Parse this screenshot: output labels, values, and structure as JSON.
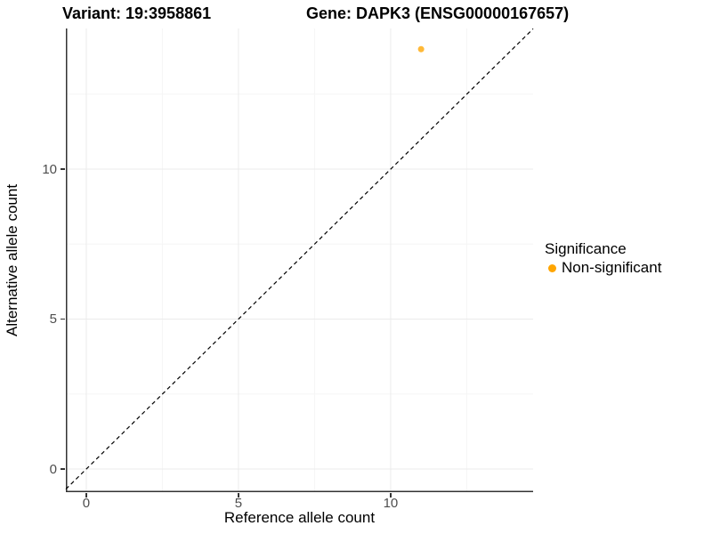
{
  "figure": {
    "title_variant": "Variant: 19:3958861",
    "title_gene": "Gene: DAPK3 (ENSG00000167657)"
  },
  "chart_data": {
    "type": "scatter",
    "title": "Variant: 19:3958861    Gene: DAPK3 (ENSG00000167657)",
    "xlabel": "Reference allele count",
    "ylabel": "Alternative allele count",
    "xlim": [
      -0.67,
      14.68
    ],
    "ylim": [
      -0.77,
      14.69
    ],
    "x_ticks": [
      0,
      5,
      10
    ],
    "y_ticks": [
      0,
      5,
      10
    ],
    "x_minor_ticks": [
      2.5,
      7.5,
      12.5
    ],
    "y_minor_ticks": [
      2.5,
      7.5,
      12.5
    ],
    "grid": "major+minor",
    "identity_line": {
      "slope": 1,
      "intercept": 0,
      "style": "dashed",
      "color": "#000000"
    },
    "series": [
      {
        "name": "Non-significant",
        "color": "#FFA500",
        "opacity": 0.78,
        "points": [
          {
            "x": 11,
            "y": 14
          }
        ]
      }
    ],
    "legend": {
      "title": "Significance",
      "position": "right",
      "entries": [
        {
          "label": "Non-significant",
          "color": "#FFA500"
        }
      ]
    }
  },
  "colors": {
    "background": "#FFFFFF",
    "axis_line": "#333333",
    "tick_mark": "#333333",
    "tick_label": "#4D4D4D",
    "grid_major": "#EBEBEB",
    "grid_minor": "#F5F5F5",
    "point": "#FFA500"
  }
}
